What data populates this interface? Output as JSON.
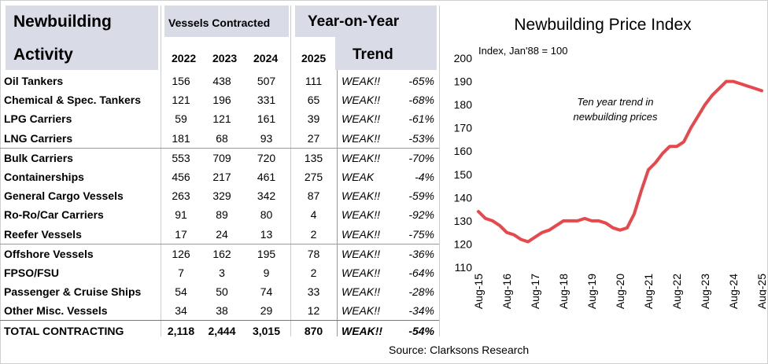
{
  "activity_header": {
    "line1": "Newbuilding",
    "line2": "Activity"
  },
  "contracted_header": "Vessels Contracted",
  "years": [
    "2022",
    "2023",
    "2024"
  ],
  "yoy_header": "Year-on-Year",
  "yoy_year": "2025",
  "trend_header": "Trend",
  "rows": [
    {
      "name": "Oil Tankers",
      "y2022": "156",
      "y2023": "438",
      "y2024": "507",
      "y2025": "111",
      "trend": "WEAK!!",
      "pct": "-65%"
    },
    {
      "name": "Chemical & Spec. Tankers",
      "y2022": "121",
      "y2023": "196",
      "y2024": "331",
      "y2025": "65",
      "trend": "WEAK!!",
      "pct": "-68%"
    },
    {
      "name": "LPG Carriers",
      "y2022": "59",
      "y2023": "121",
      "y2024": "161",
      "y2025": "39",
      "trend": "WEAK!!",
      "pct": "-61%"
    },
    {
      "name": "LNG Carriers",
      "y2022": "181",
      "y2023": "68",
      "y2024": "93",
      "y2025": "27",
      "trend": "WEAK!!",
      "pct": "-53%"
    },
    {
      "name": "Bulk Carriers",
      "y2022": "553",
      "y2023": "709",
      "y2024": "720",
      "y2025": "135",
      "trend": "WEAK!!",
      "pct": "-70%"
    },
    {
      "name": "Containerships",
      "y2022": "456",
      "y2023": "217",
      "y2024": "461",
      "y2025": "275",
      "trend": "WEAK",
      "pct": "-4%"
    },
    {
      "name": "General Cargo Vessels",
      "y2022": "263",
      "y2023": "329",
      "y2024": "342",
      "y2025": "87",
      "trend": "WEAK!!",
      "pct": "-59%"
    },
    {
      "name": "Ro-Ro/Car Carriers",
      "y2022": "91",
      "y2023": "89",
      "y2024": "80",
      "y2025": "4",
      "trend": "WEAK!!",
      "pct": "-92%"
    },
    {
      "name": "Reefer Vessels",
      "y2022": "17",
      "y2023": "24",
      "y2024": "13",
      "y2025": "2",
      "trend": "WEAK!!",
      "pct": "-75%"
    },
    {
      "name": "Offshore Vessels",
      "y2022": "126",
      "y2023": "162",
      "y2024": "195",
      "y2025": "78",
      "trend": "WEAK!!",
      "pct": "-36%"
    },
    {
      "name": "FPSO/FSU",
      "y2022": "7",
      "y2023": "3",
      "y2024": "9",
      "y2025": "2",
      "trend": "WEAK!!",
      "pct": "-64%"
    },
    {
      "name": "Passenger & Cruise Ships",
      "y2022": "54",
      "y2023": "50",
      "y2024": "74",
      "y2025": "33",
      "trend": "WEAK!!",
      "pct": "-28%"
    },
    {
      "name": "Other Misc. Vessels",
      "y2022": "34",
      "y2023": "38",
      "y2024": "29",
      "y2025": "12",
      "trend": "WEAK!!",
      "pct": "-34%"
    }
  ],
  "total": {
    "name": "TOTAL CONTRACTING",
    "y2022": "2,118",
    "y2023": "2,444",
    "y2024": "3,015",
    "y2025": "870",
    "trend": "WEAK!!",
    "pct": "-54%"
  },
  "source": "Source: Clarksons Research",
  "colors": {
    "header_bg": "#d9dbe6",
    "line": "#e8474c"
  },
  "chart_data": {
    "type": "line",
    "title": "Newbuilding Price Index",
    "subtitle": "Index, Jan'88 = 100",
    "annotation": [
      "Ten year trend in",
      "newbuilding prices"
    ],
    "ylim": [
      110,
      200
    ],
    "yticks": [
      110,
      120,
      130,
      140,
      150,
      160,
      170,
      180,
      190,
      200
    ],
    "xlim": [
      "Aug-15",
      "Aug-25"
    ],
    "xticks": [
      "Aug-15",
      "Aug-16",
      "Aug-17",
      "Aug-18",
      "Aug-19",
      "Aug-20",
      "Aug-21",
      "Aug-22",
      "Aug-23",
      "Aug-24",
      "Aug-25"
    ],
    "grid": false,
    "x": [
      "Aug-15",
      "Nov-15",
      "Feb-16",
      "May-16",
      "Aug-16",
      "Nov-16",
      "Feb-17",
      "May-17",
      "Aug-17",
      "Nov-17",
      "Feb-18",
      "May-18",
      "Aug-18",
      "Nov-18",
      "Feb-19",
      "May-19",
      "Aug-19",
      "Nov-19",
      "Feb-20",
      "May-20",
      "Aug-20",
      "Nov-20",
      "Feb-21",
      "May-21",
      "Aug-21",
      "Nov-21",
      "Feb-22",
      "May-22",
      "Aug-22",
      "Nov-22",
      "Feb-23",
      "May-23",
      "Aug-23",
      "Nov-23",
      "Feb-24",
      "May-24",
      "Aug-24",
      "Nov-24",
      "Feb-25",
      "May-25",
      "Aug-25"
    ],
    "series": [
      {
        "values": [
          134,
          131,
          130,
          128,
          125,
          124,
          122,
          121,
          123,
          125,
          126,
          128,
          130,
          130,
          130,
          131,
          130,
          130,
          129,
          127,
          126,
          127,
          133,
          143,
          152,
          155,
          159,
          162,
          162,
          164,
          170,
          175,
          180,
          184,
          187,
          190,
          190,
          189,
          188,
          187,
          186
        ]
      }
    ]
  }
}
